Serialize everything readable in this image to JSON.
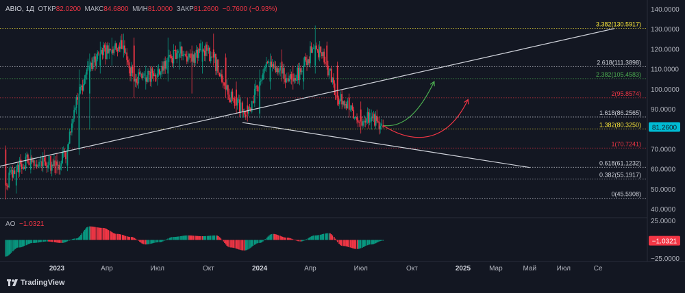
{
  "header": {
    "symbol": "ABIO, 1Д",
    "open_label": "ОТКР",
    "open": "82.0200",
    "high_label": "МАКС",
    "high": "84.6800",
    "low_label": "МИН",
    "low": "81.0000",
    "close_label": "ЗАКР",
    "close": "81.2600",
    "change": "−0.7600 (−0.93%)"
  },
  "ao_header": {
    "label": "AO",
    "value": "−1.0321"
  },
  "price_badge": "81.2600",
  "ao_badge": "−1.0321",
  "brand": "TradingView",
  "colors": {
    "background": "#131722",
    "up": "#089981",
    "down": "#f23645",
    "grid_text": "#b2b5be",
    "badge": "#00bcd4",
    "ao_badge": "#f23645",
    "green_arrow": "#4caf50",
    "red_arrow": "#f23645"
  },
  "chart_data": [
    {
      "type": "candlestick",
      "title": "ABIO, 1Д",
      "y_axis": {
        "ticks": [
          "140.0000",
          "130.0000",
          "120.0000",
          "110.0000",
          "100.0000",
          "90.0000",
          "80.0000",
          "70.0000",
          "60.0000",
          "50.0000",
          "40.0000"
        ],
        "range": [
          35,
          142
        ]
      },
      "x_axis": {
        "ticks": [
          "2023",
          "Апр",
          "Июл",
          "Окт",
          "2024",
          "Апр",
          "Июл",
          "Окт",
          "2025",
          "Мар",
          "Май",
          "Июл",
          "Се"
        ]
      },
      "price_series": [
        {
          "d": "2022-10-01",
          "o": 70,
          "h": 72,
          "l": 45,
          "c": 52
        },
        {
          "d": "2022-10-20",
          "o": 52,
          "h": 62,
          "l": 48,
          "c": 60
        },
        {
          "d": "2022-11-15",
          "o": 60,
          "h": 70,
          "l": 58,
          "c": 66
        },
        {
          "d": "2022-12-10",
          "o": 66,
          "h": 70,
          "l": 62,
          "c": 64
        },
        {
          "d": "2023-01-01",
          "o": 64,
          "h": 68,
          "l": 58,
          "c": 62
        },
        {
          "d": "2023-01-20",
          "o": 62,
          "h": 72,
          "l": 60,
          "c": 70
        },
        {
          "d": "2023-02-10",
          "o": 70,
          "h": 110,
          "l": 68,
          "c": 98
        },
        {
          "d": "2023-03-01",
          "o": 98,
          "h": 118,
          "l": 80,
          "c": 112
        },
        {
          "d": "2023-03-20",
          "o": 112,
          "h": 124,
          "l": 108,
          "c": 118
        },
        {
          "d": "2023-04-10",
          "o": 118,
          "h": 126,
          "l": 112,
          "c": 120
        },
        {
          "d": "2023-05-01",
          "o": 120,
          "h": 128,
          "l": 116,
          "c": 122
        },
        {
          "d": "2023-05-20",
          "o": 122,
          "h": 126,
          "l": 96,
          "c": 104
        },
        {
          "d": "2023-06-10",
          "o": 104,
          "h": 112,
          "l": 100,
          "c": 106
        },
        {
          "d": "2023-07-01",
          "o": 106,
          "h": 112,
          "l": 102,
          "c": 108
        },
        {
          "d": "2023-07-20",
          "o": 108,
          "h": 126,
          "l": 104,
          "c": 116
        },
        {
          "d": "2023-08-10",
          "o": 116,
          "h": 124,
          "l": 110,
          "c": 118
        },
        {
          "d": "2023-09-01",
          "o": 118,
          "h": 122,
          "l": 98,
          "c": 114
        },
        {
          "d": "2023-09-20",
          "o": 114,
          "h": 124,
          "l": 108,
          "c": 120
        },
        {
          "d": "2023-10-10",
          "o": 120,
          "h": 128,
          "l": 112,
          "c": 116
        },
        {
          "d": "2023-11-01",
          "o": 116,
          "h": 118,
          "l": 96,
          "c": 100
        },
        {
          "d": "2023-11-20",
          "o": 100,
          "h": 104,
          "l": 88,
          "c": 92
        },
        {
          "d": "2023-12-10",
          "o": 92,
          "h": 96,
          "l": 84,
          "c": 88
        },
        {
          "d": "2024-01-01",
          "o": 88,
          "h": 110,
          "l": 86,
          "c": 104
        },
        {
          "d": "2024-01-20",
          "o": 104,
          "h": 118,
          "l": 100,
          "c": 114
        },
        {
          "d": "2024-02-10",
          "o": 114,
          "h": 120,
          "l": 104,
          "c": 108
        },
        {
          "d": "2024-03-01",
          "o": 108,
          "h": 112,
          "l": 100,
          "c": 104
        },
        {
          "d": "2024-03-20",
          "o": 104,
          "h": 116,
          "l": 100,
          "c": 112
        },
        {
          "d": "2024-04-10",
          "o": 112,
          "h": 132,
          "l": 108,
          "c": 122
        },
        {
          "d": "2024-05-01",
          "o": 122,
          "h": 124,
          "l": 110,
          "c": 112
        },
        {
          "d": "2024-05-20",
          "o": 112,
          "h": 114,
          "l": 92,
          "c": 96
        },
        {
          "d": "2024-06-10",
          "o": 96,
          "h": 98,
          "l": 86,
          "c": 90
        },
        {
          "d": "2024-07-01",
          "o": 90,
          "h": 94,
          "l": 78,
          "c": 84
        },
        {
          "d": "2024-07-20",
          "o": 84,
          "h": 90,
          "l": 80,
          "c": 86
        },
        {
          "d": "2024-08-10",
          "o": 82,
          "h": 85,
          "l": 81,
          "c": 81.26
        }
      ],
      "fib_levels": [
        {
          "label": "3.382(130.5917)",
          "value": 130.5917,
          "color": "#ffeb3b"
        },
        {
          "label": "2.618(111.3898)",
          "value": 111.3898,
          "color": "#d1d4dc"
        },
        {
          "label": "2.382(105.4583)",
          "value": 105.4583,
          "color": "#4caf50"
        },
        {
          "label": "2(95.8574)",
          "value": 95.8574,
          "color": "#f23645"
        },
        {
          "label": "1.618(86.2565)",
          "value": 86.2565,
          "color": "#d1d4dc"
        },
        {
          "label": "1.382(80.3250)",
          "value": 80.325,
          "color": "#ffeb3b"
        },
        {
          "label": "1(70.7241)",
          "value": 70.7241,
          "color": "#f23645"
        },
        {
          "label": "0.618(61.1232)",
          "value": 61.1232,
          "color": "#d1d4dc"
        },
        {
          "label": "0.382(55.1917)",
          "value": 55.1917,
          "color": "#d1d4dc"
        },
        {
          "label": "0(45.5908)",
          "value": 45.5908,
          "color": "#d1d4dc"
        }
      ],
      "trendlines": [
        {
          "from": [
            "2022-09-10",
            61
          ],
          "to": [
            "2025-09-30",
            130.5
          ]
        },
        {
          "from": [
            "2023-12-01",
            83.5
          ],
          "to": [
            "2025-05-01",
            61
          ]
        }
      ],
      "forecast_paths": [
        {
          "color": "green",
          "points": [
            [
              "2024-08-10",
              82
            ],
            [
              "2024-09-10",
              81
            ],
            [
              "2024-10-10",
              86
            ],
            [
              "2024-11-10",
              104
            ]
          ]
        },
        {
          "color": "red",
          "points": [
            [
              "2024-08-10",
              82
            ],
            [
              "2024-10-01",
              73
            ],
            [
              "2024-12-01",
              72
            ],
            [
              "2025-01-10",
              95
            ]
          ]
        }
      ]
    },
    {
      "type": "bar",
      "title": "AO",
      "y_axis": {
        "ticks": [
          "25.0000",
          "−25.0000"
        ],
        "range": [
          -30,
          28
        ]
      },
      "note": "Awesome Oscillator histogram, last value −1.0321",
      "values": [
        {
          "d": "2022-10-01",
          "v": -22
        },
        {
          "d": "2022-10-25",
          "v": -10
        },
        {
          "d": "2022-11-20",
          "v": -4
        },
        {
          "d": "2022-12-15",
          "v": -2
        },
        {
          "d": "2023-01-10",
          "v": -4
        },
        {
          "d": "2023-02-05",
          "v": 2
        },
        {
          "d": "2023-03-01",
          "v": 18
        },
        {
          "d": "2023-03-25",
          "v": 16
        },
        {
          "d": "2023-04-20",
          "v": 8
        },
        {
          "d": "2023-05-15",
          "v": 4
        },
        {
          "d": "2023-06-10",
          "v": -6
        },
        {
          "d": "2023-07-05",
          "v": -3
        },
        {
          "d": "2023-07-30",
          "v": 4
        },
        {
          "d": "2023-08-25",
          "v": 6
        },
        {
          "d": "2023-09-20",
          "v": 5
        },
        {
          "d": "2023-10-15",
          "v": 6
        },
        {
          "d": "2023-11-10",
          "v": -10
        },
        {
          "d": "2023-12-05",
          "v": -14
        },
        {
          "d": "2024-01-01",
          "v": -4
        },
        {
          "d": "2024-01-25",
          "v": 8
        },
        {
          "d": "2024-02-20",
          "v": 3
        },
        {
          "d": "2024-03-15",
          "v": -2
        },
        {
          "d": "2024-04-10",
          "v": 6
        },
        {
          "d": "2024-05-05",
          "v": 9
        },
        {
          "d": "2024-05-30",
          "v": -8
        },
        {
          "d": "2024-06-25",
          "v": -12
        },
        {
          "d": "2024-07-20",
          "v": -6
        },
        {
          "d": "2024-08-10",
          "v": -1.0321
        }
      ]
    }
  ]
}
